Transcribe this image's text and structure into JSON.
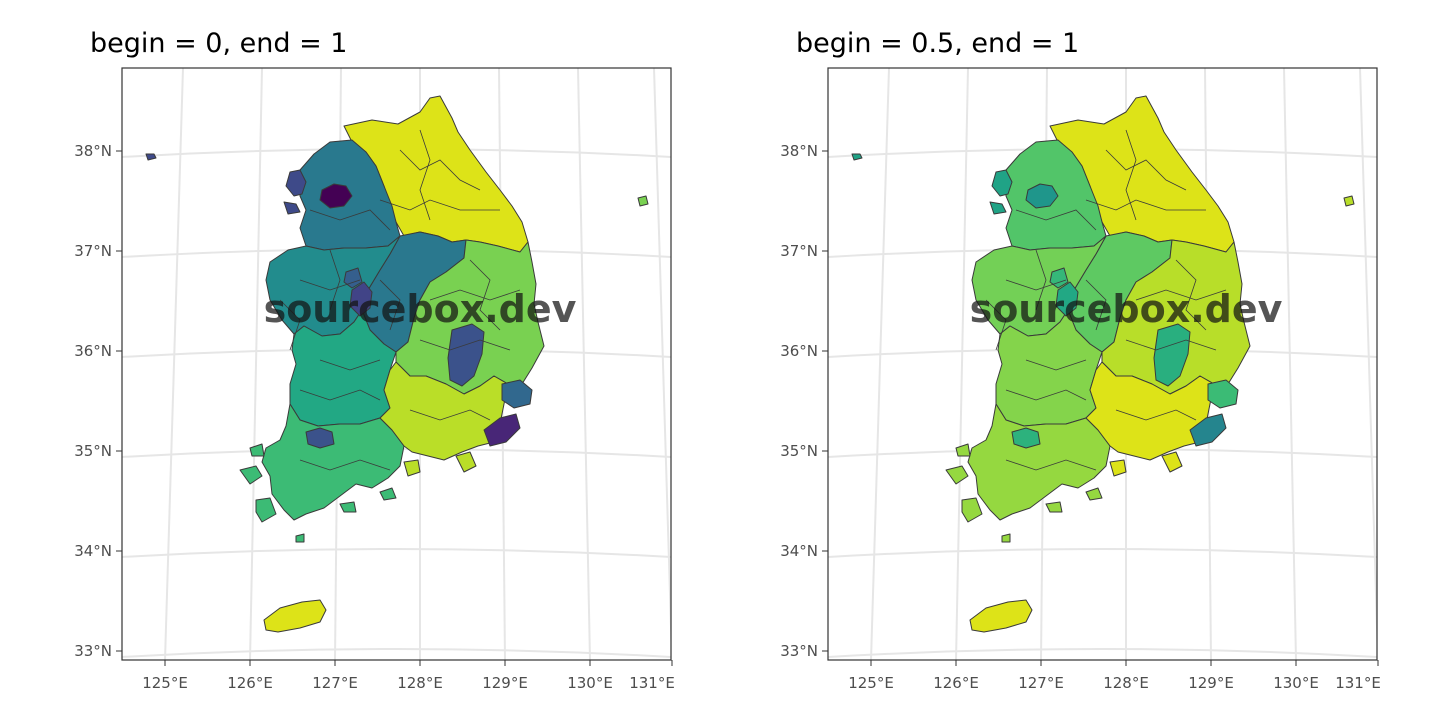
{
  "panels": [
    {
      "title": "begin = 0, end = 1",
      "palette": {
        "north_jeju": "#dde318",
        "gangwon": "#dde318",
        "gyeonggi": "#29798e",
        "seoul": "#440154",
        "incheon": "#3e4a89",
        "chungbuk": "#2a788e",
        "chungnam": "#228c8d",
        "jeonbuk": "#22a884",
        "jeonnam": "#3cbb75",
        "gyeongbuk": "#79d151",
        "gyeongnam": "#bade28",
        "daejeon": "#414487",
        "daegu": "#3b528b",
        "ulsan": "#31688e",
        "busan": "#482677",
        "gwangju": "#3b528b",
        "sejong": "#355f8d",
        "ulleung": "#79d151",
        "baengnyeong": "#3e4a89"
      }
    },
    {
      "title": "begin = 0.5, end = 1",
      "palette": {
        "north_jeju": "#dde318",
        "gangwon": "#fde725",
        "gyeonggi": "#52c569",
        "seoul": "#1f968b",
        "incheon": "#20a386",
        "chungbuk": "#5ec962",
        "chungnam": "#73d056",
        "jeonbuk": "#84d44b",
        "jeonnam": "#95d840",
        "gyeongbuk": "#b8de29",
        "gyeongnam": "#dde318",
        "daejeon": "#22a884",
        "daegu": "#29af7f",
        "ulsan": "#3bbb75",
        "busan": "#25858e",
        "gwangju": "#2db27d",
        "sejong": "#35b779",
        "ulleung": "#b8de29",
        "baengnyeong": "#20a386"
      }
    }
  ],
  "axes": {
    "x_ticks": [
      "125°E",
      "126°E",
      "127°E",
      "128°E",
      "129°E",
      "130°E",
      "131°E"
    ],
    "y_ticks": [
      "38°N",
      "37°N",
      "36°N",
      "35°N",
      "34°N",
      "33°N"
    ]
  },
  "watermark": "sourcebox.dev"
}
